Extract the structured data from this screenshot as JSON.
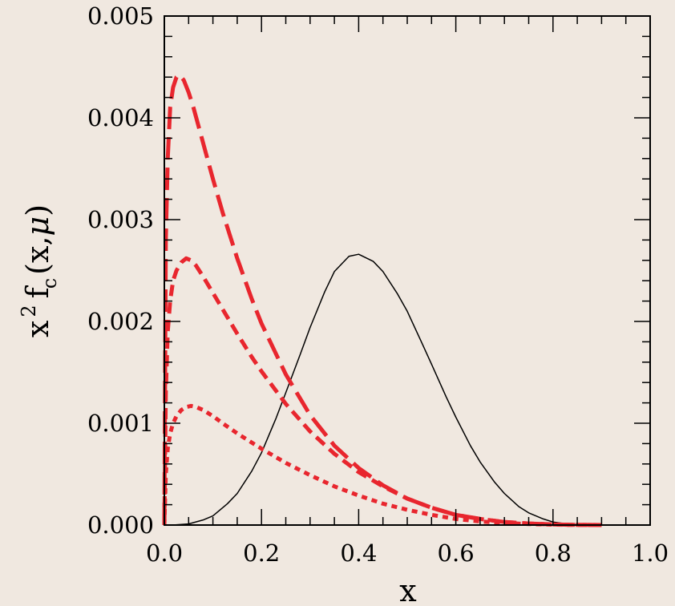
{
  "chart_data": {
    "type": "line",
    "xlabel": "x",
    "ylabel": {
      "base": "x",
      "sup": "2",
      "f": "f",
      "sub": "c",
      "args_open": "(x,",
      "mu": "μ",
      "args_close": ")"
    },
    "xlim": [
      0.0,
      1.0
    ],
    "ylim": [
      0.0,
      0.005
    ],
    "xticks": [
      "0.0",
      "0.2",
      "0.4",
      "0.6",
      "0.8",
      "1.0"
    ],
    "yticks": [
      "0.000",
      "0.001",
      "0.002",
      "0.003",
      "0.004",
      "0.005"
    ],
    "grid": false,
    "colors": {
      "red": "#e8262e",
      "black": "#000000"
    },
    "series": [
      {
        "style": "solid-thin",
        "color": "#000000",
        "x": [
          0.0,
          0.02,
          0.05,
          0.08,
          0.1,
          0.13,
          0.15,
          0.18,
          0.2,
          0.23,
          0.25,
          0.28,
          0.3,
          0.33,
          0.35,
          0.38,
          0.4,
          0.43,
          0.45,
          0.48,
          0.5,
          0.53,
          0.55,
          0.58,
          0.6,
          0.63,
          0.65,
          0.68,
          0.7,
          0.73,
          0.75,
          0.78,
          0.8,
          0.83,
          0.85,
          0.88,
          0.9
        ],
        "y": [
          0.0,
          1e-06,
          1.1e-05,
          5e-05,
          9e-05,
          0.00021,
          0.00031,
          0.00053,
          0.00071,
          0.00105,
          0.0013,
          0.00168,
          0.00194,
          0.00229,
          0.00249,
          0.00264,
          0.00266,
          0.00259,
          0.00249,
          0.00227,
          0.0021,
          0.00179,
          0.00158,
          0.00126,
          0.00106,
          0.00078,
          0.00062,
          0.00042,
          0.00031,
          0.00018,
          0.00012,
          6e-05,
          3e-05,
          1e-05,
          3e-06,
          1e-06,
          0.0
        ]
      },
      {
        "style": "long-dash",
        "color": "#e8262e",
        "x": [
          0.0,
          0.003,
          0.007,
          0.012,
          0.018,
          0.025,
          0.03,
          0.035,
          0.04,
          0.05,
          0.06,
          0.08,
          0.1,
          0.12,
          0.15,
          0.18,
          0.2,
          0.25,
          0.3,
          0.35,
          0.4,
          0.45,
          0.5,
          0.55,
          0.6,
          0.65,
          0.7,
          0.75,
          0.8,
          0.85,
          0.9
        ],
        "y": [
          0.0,
          0.0028,
          0.0036,
          0.0041,
          0.0043,
          0.0044,
          0.00442,
          0.0044,
          0.00437,
          0.00425,
          0.0041,
          0.00375,
          0.0034,
          0.00307,
          0.00262,
          0.00222,
          0.00198,
          0.00148,
          0.00108,
          0.00078,
          0.00056,
          0.00039,
          0.00026,
          0.00017,
          0.0001,
          6e-05,
          3e-05,
          1.5e-05,
          6e-06,
          2e-06,
          0.0
        ]
      },
      {
        "style": "medium-dash",
        "color": "#e8262e",
        "x": [
          0.0,
          0.003,
          0.007,
          0.012,
          0.018,
          0.025,
          0.035,
          0.045,
          0.055,
          0.065,
          0.08,
          0.1,
          0.12,
          0.15,
          0.18,
          0.2,
          0.25,
          0.3,
          0.35,
          0.4,
          0.45,
          0.5,
          0.55,
          0.6,
          0.65,
          0.7,
          0.75,
          0.8,
          0.85,
          0.9
        ],
        "y": [
          0.0,
          0.0013,
          0.0019,
          0.0022,
          0.0024,
          0.0025,
          0.00258,
          0.00262,
          0.0026,
          0.00255,
          0.00244,
          0.00228,
          0.00212,
          0.00188,
          0.00165,
          0.00151,
          0.00119,
          0.00092,
          0.0007,
          0.00052,
          0.00038,
          0.00026,
          0.00017,
          0.0001,
          6e-05,
          3e-05,
          1.5e-05,
          6e-06,
          2e-06,
          0.0
        ]
      },
      {
        "style": "dotted",
        "color": "#e8262e",
        "x": [
          0.0,
          0.003,
          0.007,
          0.012,
          0.018,
          0.025,
          0.035,
          0.045,
          0.055,
          0.065,
          0.08,
          0.1,
          0.12,
          0.15,
          0.18,
          0.2,
          0.25,
          0.3,
          0.35,
          0.4,
          0.45,
          0.5,
          0.55,
          0.6,
          0.65,
          0.7,
          0.75,
          0.8,
          0.85,
          0.9
        ],
        "y": [
          0.0,
          0.0005,
          0.00075,
          0.0009,
          0.001,
          0.00107,
          0.00113,
          0.00116,
          0.00117,
          0.00116,
          0.00113,
          0.00107,
          0.001,
          0.0009,
          0.00081,
          0.00075,
          0.00061,
          0.00049,
          0.00038,
          0.00029,
          0.00021,
          0.00015,
          0.0001,
          6e-05,
          3.5e-05,
          2e-05,
          1e-05,
          4e-06,
          1e-06,
          0.0
        ]
      }
    ]
  }
}
